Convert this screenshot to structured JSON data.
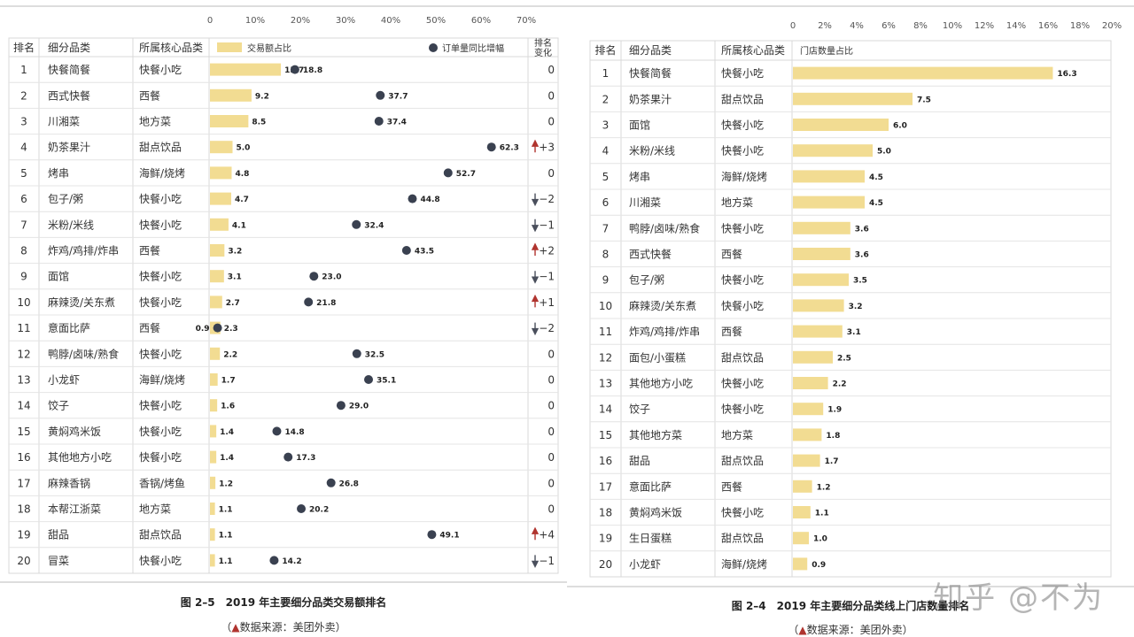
{
  "colors": {
    "bar": "#f2dc92",
    "dot": "#3a4150",
    "up": "#b0342f",
    "down": "#4a4f5c",
    "grid": "#dddddd"
  },
  "chart_data": [
    {
      "type": "bar",
      "caption": "图 2–5　2019 年主要细分品类交易额排名",
      "source_prefix": "（",
      "source_text": "数据来源：美团外卖）",
      "headers": {
        "rank": "排名",
        "category": "细分品类",
        "core": "所属核心品类",
        "share": "交易额占比",
        "growth": "订单量同比增幅",
        "change": "排名变化"
      },
      "xticks": [
        "0",
        "10%",
        "20%",
        "30%",
        "40%",
        "50%",
        "60%",
        "70%"
      ],
      "xlim": [
        0,
        70
      ],
      "rows": [
        {
          "rank": "1",
          "category": "快餐简餐",
          "core": "快餐小吃",
          "share": 15.7,
          "growth": 18.8,
          "change": "0",
          "dir": ""
        },
        {
          "rank": "2",
          "category": "西式快餐",
          "core": "西餐",
          "share": 9.2,
          "growth": 37.7,
          "change": "0",
          "dir": ""
        },
        {
          "rank": "3",
          "category": "川湘菜",
          "core": "地方菜",
          "share": 8.5,
          "growth": 37.4,
          "change": "0",
          "dir": ""
        },
        {
          "rank": "4",
          "category": "奶茶果汁",
          "core": "甜点饮品",
          "share": 5.0,
          "growth": 62.3,
          "change": "+3",
          "dir": "up"
        },
        {
          "rank": "5",
          "category": "烤串",
          "core": "海鲜/烧烤",
          "share": 4.8,
          "growth": 52.7,
          "change": "0",
          "dir": ""
        },
        {
          "rank": "6",
          "category": "包子/粥",
          "core": "快餐小吃",
          "share": 4.7,
          "growth": 44.8,
          "change": "−2",
          "dir": "down"
        },
        {
          "rank": "7",
          "category": "米粉/米线",
          "core": "快餐小吃",
          "share": 4.1,
          "growth": 32.4,
          "change": "−1",
          "dir": "down"
        },
        {
          "rank": "8",
          "category": "炸鸡/鸡排/炸串",
          "core": "西餐",
          "share": 3.2,
          "growth": 43.5,
          "change": "+2",
          "dir": "up"
        },
        {
          "rank": "9",
          "category": "面馆",
          "core": "快餐小吃",
          "share": 3.1,
          "growth": 23.0,
          "change": "−1",
          "dir": "down"
        },
        {
          "rank": "10",
          "category": "麻辣烫/关东煮",
          "core": "快餐小吃",
          "share": 2.7,
          "growth": 21.8,
          "change": "+1",
          "dir": "up"
        },
        {
          "rank": "11",
          "category": "意面比萨",
          "core": "西餐",
          "share": 2.3,
          "growth": 0.9,
          "change": "−2",
          "dir": "down"
        },
        {
          "rank": "12",
          "category": "鸭脖/卤味/熟食",
          "core": "快餐小吃",
          "share": 2.2,
          "growth": 32.5,
          "change": "0",
          "dir": ""
        },
        {
          "rank": "13",
          "category": "小龙虾",
          "core": "海鲜/烧烤",
          "share": 1.7,
          "growth": 35.1,
          "change": "0",
          "dir": ""
        },
        {
          "rank": "14",
          "category": "饺子",
          "core": "快餐小吃",
          "share": 1.6,
          "growth": 29.0,
          "change": "0",
          "dir": ""
        },
        {
          "rank": "15",
          "category": "黄焖鸡米饭",
          "core": "快餐小吃",
          "share": 1.4,
          "growth": 14.8,
          "change": "0",
          "dir": ""
        },
        {
          "rank": "16",
          "category": "其他地方小吃",
          "core": "快餐小吃",
          "share": 1.4,
          "growth": 17.3,
          "change": "0",
          "dir": ""
        },
        {
          "rank": "17",
          "category": "麻辣香锅",
          "core": "香锅/烤鱼",
          "share": 1.2,
          "growth": 26.8,
          "change": "0",
          "dir": ""
        },
        {
          "rank": "18",
          "category": "本帮江浙菜",
          "core": "地方菜",
          "share": 1.1,
          "growth": 20.2,
          "change": "0",
          "dir": ""
        },
        {
          "rank": "19",
          "category": "甜品",
          "core": "甜点饮品",
          "share": 1.1,
          "growth": 49.1,
          "change": "+4",
          "dir": "up"
        },
        {
          "rank": "20",
          "category": "冒菜",
          "core": "快餐小吃",
          "share": 1.1,
          "growth": 14.2,
          "change": "−1",
          "dir": "down"
        }
      ]
    },
    {
      "type": "bar",
      "caption": "图 2–4　2019 年主要细分品类线上门店数量排名",
      "source_prefix": "（",
      "source_text": "数据来源：美团外卖）",
      "headers": {
        "rank": "排名",
        "category": "细分品类",
        "core": "所属核心品类",
        "share": "门店数量占比"
      },
      "xticks": [
        "0",
        "2%",
        "4%",
        "6%",
        "8%",
        "10%",
        "12%",
        "14%",
        "16%",
        "18%",
        "20%"
      ],
      "xlim": [
        0,
        20
      ],
      "rows": [
        {
          "rank": "1",
          "category": "快餐简餐",
          "core": "快餐小吃",
          "share": 16.3
        },
        {
          "rank": "2",
          "category": "奶茶果汁",
          "core": "甜点饮品",
          "share": 7.5
        },
        {
          "rank": "3",
          "category": "面馆",
          "core": "快餐小吃",
          "share": 6.0
        },
        {
          "rank": "4",
          "category": "米粉/米线",
          "core": "快餐小吃",
          "share": 5.0
        },
        {
          "rank": "5",
          "category": "烤串",
          "core": "海鲜/烧烤",
          "share": 4.5
        },
        {
          "rank": "6",
          "category": "川湘菜",
          "core": "地方菜",
          "share": 4.5
        },
        {
          "rank": "7",
          "category": "鸭脖/卤味/熟食",
          "core": "快餐小吃",
          "share": 3.6
        },
        {
          "rank": "8",
          "category": "西式快餐",
          "core": "西餐",
          "share": 3.6
        },
        {
          "rank": "9",
          "category": "包子/粥",
          "core": "快餐小吃",
          "share": 3.5
        },
        {
          "rank": "10",
          "category": "麻辣烫/关东煮",
          "core": "快餐小吃",
          "share": 3.2
        },
        {
          "rank": "11",
          "category": "炸鸡/鸡排/炸串",
          "core": "西餐",
          "share": 3.1
        },
        {
          "rank": "12",
          "category": "面包/小蛋糕",
          "core": "甜点饮品",
          "share": 2.5
        },
        {
          "rank": "13",
          "category": "其他地方小吃",
          "core": "快餐小吃",
          "share": 2.2
        },
        {
          "rank": "14",
          "category": "饺子",
          "core": "快餐小吃",
          "share": 1.9
        },
        {
          "rank": "15",
          "category": "其他地方菜",
          "core": "地方菜",
          "share": 1.8
        },
        {
          "rank": "16",
          "category": "甜品",
          "core": "甜点饮品",
          "share": 1.7
        },
        {
          "rank": "17",
          "category": "意面比萨",
          "core": "西餐",
          "share": 1.2
        },
        {
          "rank": "18",
          "category": "黄焖鸡米饭",
          "core": "快餐小吃",
          "share": 1.1
        },
        {
          "rank": "19",
          "category": "生日蛋糕",
          "core": "甜点饮品",
          "share": 1.0
        },
        {
          "rank": "20",
          "category": "小龙虾",
          "core": "海鲜/烧烤",
          "share": 0.9
        }
      ]
    }
  ],
  "watermark": "知乎 @不为"
}
